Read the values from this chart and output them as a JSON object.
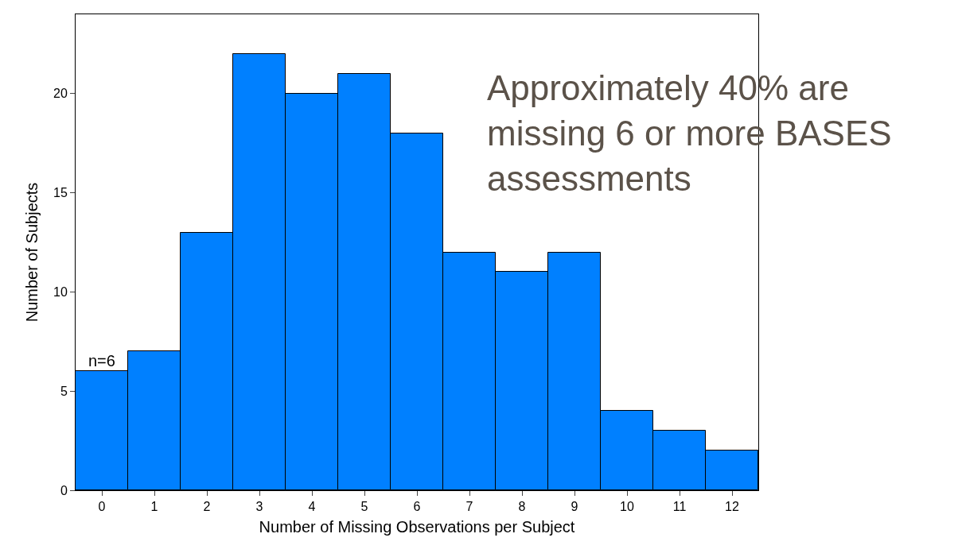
{
  "chart_data": {
    "type": "histogram",
    "xlabel": "Number of Missing Observations per Subject",
    "ylabel": "Number of Subjects",
    "bins": [
      -0.5,
      0.5,
      1.5,
      2.5,
      3.5,
      4.5,
      5.5,
      6.5,
      7.5,
      8.5,
      9.5,
      10.5,
      11.5,
      12.5
    ],
    "values": [
      6,
      7,
      13,
      22,
      20,
      21,
      18,
      12,
      11,
      12,
      4,
      3,
      2
    ],
    "color": "#0080ff",
    "xlim": [
      -0.5,
      12.5
    ],
    "xticks": [
      0,
      1,
      2,
      3,
      4,
      5,
      6,
      7,
      8,
      9,
      10,
      11,
      12
    ],
    "ylim": [
      0,
      24
    ],
    "yticks": [
      0,
      5,
      10,
      15,
      20
    ],
    "annotations": [
      {
        "text": "n=6",
        "x": 0,
        "y": 6
      },
      "Approximately 40% are\nmissing 6 or more BASES\nassessments"
    ]
  }
}
